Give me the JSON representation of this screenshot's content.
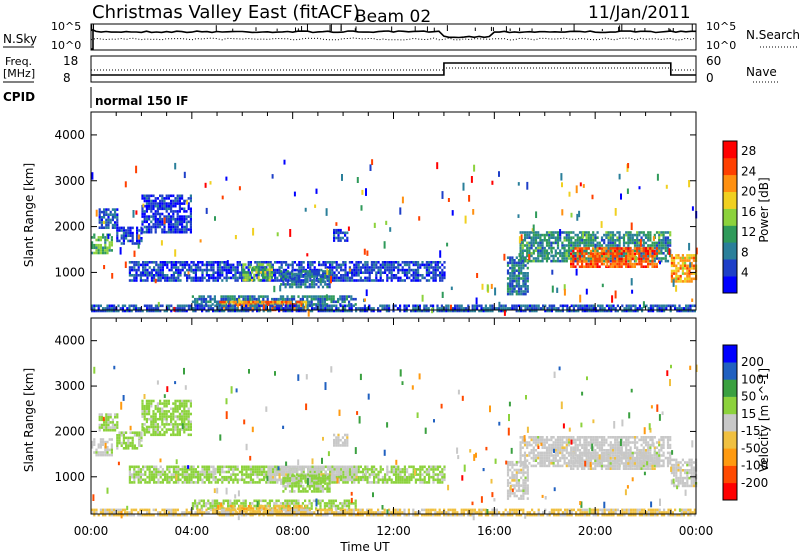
{
  "header": {
    "title": "Christmas Valley East (fitACF)",
    "beam": "Beam 02",
    "date": "11/Jan/2011"
  },
  "top_panels": {
    "nsky_label": "N.Sky",
    "nsky_ticks": [
      "10^5",
      "10^0"
    ],
    "nsearch_label": "N.Search",
    "nsearch_ticks": [
      "10^5",
      "10^0"
    ],
    "freq_label_1": "Freq.",
    "freq_label_2": "[MHz]",
    "freq_ticks": [
      "18",
      "8"
    ],
    "nave_label": "Nave",
    "nave_ticks": [
      "60",
      "0"
    ],
    "cpid_label": "CPID",
    "cpid_text": "normal 150 IF"
  },
  "chart_data": [
    {
      "type": "heatmap",
      "name": "power",
      "ylabel": "Slant Range [km]",
      "xlabel": "Time UT",
      "xlim": [
        "00:00",
        "24:00"
      ],
      "ylim": [
        180,
        4500
      ],
      "x_ticks": [
        "00:00",
        "04:00",
        "08:00",
        "12:00",
        "16:00",
        "20:00",
        "00:00"
      ],
      "y_ticks": [
        "1000",
        "2000",
        "3000",
        "4000"
      ],
      "colorbar": {
        "label": "Power [dB]",
        "ticks": [
          "4",
          "8",
          "12",
          "16",
          "20",
          "24",
          "28"
        ],
        "range": [
          0,
          30
        ],
        "colors": [
          "#0000ff",
          "#1e3fc8",
          "#2a7f9a",
          "#2f9a5a",
          "#8cd23c",
          "#f0d020",
          "#ff9010",
          "#ff4000",
          "#ff0000"
        ]
      },
      "regions": [
        {
          "t0": 0.0,
          "t1": 0.8,
          "r0": 1450,
          "r1": 1850,
          "level": 12
        },
        {
          "t0": 0.3,
          "t1": 1.0,
          "r0": 2000,
          "r1": 2400,
          "level": 6
        },
        {
          "t0": 1.0,
          "t1": 2.0,
          "r0": 1650,
          "r1": 2000,
          "level": 4
        },
        {
          "t0": 2.0,
          "t1": 4.0,
          "r0": 1900,
          "r1": 2700,
          "level": 4
        },
        {
          "t0": 1.5,
          "t1": 14.0,
          "r0": 850,
          "r1": 1250,
          "level": 5
        },
        {
          "t0": 6.0,
          "t1": 7.2,
          "r0": 850,
          "r1": 1200,
          "level": 14
        },
        {
          "t0": 7.5,
          "t1": 9.5,
          "r0": 700,
          "r1": 1050,
          "level": 8
        },
        {
          "t0": 9.6,
          "t1": 10.2,
          "r0": 1700,
          "r1": 1950,
          "level": 4
        },
        {
          "t0": 4.0,
          "t1": 10.5,
          "r0": 300,
          "r1": 500,
          "level": 8
        },
        {
          "t0": 5.0,
          "t1": 8.5,
          "r0": 200,
          "r1": 380,
          "level": 22
        },
        {
          "t0": 0.0,
          "t1": 24.0,
          "r0": 180,
          "r1": 300,
          "level": 6
        },
        {
          "t0": 16.5,
          "t1": 17.3,
          "r0": 500,
          "r1": 1350,
          "level": 8
        },
        {
          "t0": 17.0,
          "t1": 23.0,
          "r0": 1250,
          "r1": 1900,
          "level": 10
        },
        {
          "t0": 19.0,
          "t1": 22.5,
          "r0": 1150,
          "r1": 1550,
          "level": 24
        },
        {
          "t0": 23.0,
          "t1": 24.0,
          "r0": 800,
          "r1": 1400,
          "level": 20
        }
      ]
    },
    {
      "type": "heatmap",
      "name": "velocity",
      "ylabel": "Slant Range [km]",
      "xlabel": "Time UT",
      "xlim": [
        "00:00",
        "24:00"
      ],
      "ylim": [
        180,
        4500
      ],
      "x_ticks": [
        "00:00",
        "04:00",
        "08:00",
        "12:00",
        "16:00",
        "20:00",
        "00:00"
      ],
      "y_ticks": [
        "1000",
        "2000",
        "3000",
        "4000"
      ],
      "colorbar": {
        "label": "Velocity [m s^-1]",
        "ticks": [
          "200",
          "100",
          "50",
          "15",
          "-15",
          "-50",
          "-100",
          "-200"
        ],
        "range": [
          -250,
          250
        ],
        "colors": [
          "#ff0000",
          "#ff4a00",
          "#ff9a10",
          "#f0c040",
          "#c8c8c8",
          "#8cd23c",
          "#3aa040",
          "#2060c0",
          "#0000ff"
        ]
      },
      "regions": [
        {
          "t0": 0.0,
          "t1": 0.8,
          "r0": 1450,
          "r1": 1850,
          "level": 0
        },
        {
          "t0": 0.3,
          "t1": 1.0,
          "r0": 2000,
          "r1": 2400,
          "level": 40
        },
        {
          "t0": 1.0,
          "t1": 2.0,
          "r0": 1650,
          "r1": 2000,
          "level": 40
        },
        {
          "t0": 2.0,
          "t1": 4.0,
          "r0": 1900,
          "r1": 2700,
          "level": 50
        },
        {
          "t0": 1.5,
          "t1": 14.0,
          "r0": 850,
          "r1": 1250,
          "level": 45
        },
        {
          "t0": 7.0,
          "t1": 10.5,
          "r0": 950,
          "r1": 1250,
          "level": 0
        },
        {
          "t0": 7.5,
          "t1": 9.5,
          "r0": 700,
          "r1": 1050,
          "level": 45
        },
        {
          "t0": 9.6,
          "t1": 10.2,
          "r0": 1700,
          "r1": 1950,
          "level": 0
        },
        {
          "t0": 4.0,
          "t1": 10.5,
          "r0": 300,
          "r1": 500,
          "level": 45
        },
        {
          "t0": 5.0,
          "t1": 8.5,
          "r0": 200,
          "r1": 380,
          "level": -70
        },
        {
          "t0": 0.0,
          "t1": 24.0,
          "r0": 180,
          "r1": 300,
          "level": -40
        },
        {
          "t0": 16.5,
          "t1": 17.3,
          "r0": 500,
          "r1": 1350,
          "level": 0
        },
        {
          "t0": 17.0,
          "t1": 23.0,
          "r0": 1250,
          "r1": 1900,
          "level": 0
        },
        {
          "t0": 19.0,
          "t1": 22.5,
          "r0": 1150,
          "r1": 1550,
          "level": 0
        },
        {
          "t0": 23.0,
          "t1": 24.0,
          "r0": 800,
          "r1": 1400,
          "level": 0
        }
      ]
    }
  ],
  "axis": {
    "xlabel": "Time UT"
  }
}
